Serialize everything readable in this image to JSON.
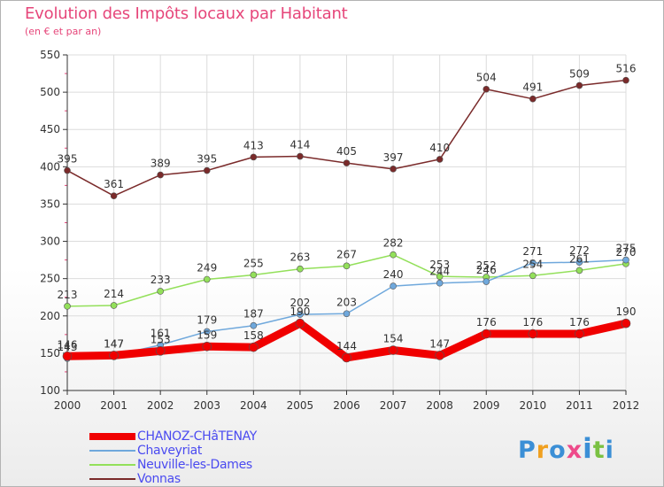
{
  "title": "Evolution des Impôts locaux par Habitant",
  "subtitle": "(en € et par an)",
  "logo": {
    "text": "Proxiti",
    "colors": [
      "#3b8fd6",
      "#f0a020",
      "#3b8fd6",
      "#ee4a8a",
      "#3b8fd6",
      "#7ac142",
      "#3b8fd6"
    ]
  },
  "chart_data": {
    "type": "line",
    "x": [
      "2000",
      "2001",
      "2002",
      "2003",
      "2004",
      "2005",
      "2006",
      "2007",
      "2008",
      "2009",
      "2010",
      "2011",
      "2012"
    ],
    "ylim": [
      100,
      550
    ],
    "yticks": [
      100,
      150,
      200,
      250,
      300,
      350,
      400,
      450,
      500,
      550
    ],
    "grid": true,
    "legend_position": "bottom-left",
    "series": [
      {
        "name": "CHANOZ-CHâTENAY",
        "color": "#f00000",
        "values": [
          146,
          147,
          153,
          159,
          158,
          190,
          144,
          154,
          147,
          176,
          176,
          176,
          190
        ]
      },
      {
        "name": "Chaveyriat",
        "color": "#6fa8dc",
        "values": [
          143,
          147,
          161,
          179,
          187,
          202,
          203,
          240,
          244,
          246,
          271,
          272,
          275
        ]
      },
      {
        "name": "Neuville-les-Dames",
        "color": "#93e05a",
        "values": [
          213,
          214,
          233,
          249,
          255,
          263,
          267,
          282,
          253,
          252,
          254,
          261,
          270
        ]
      },
      {
        "name": "Vonnas",
        "color": "#7a2a2a",
        "values": [
          395,
          361,
          389,
          395,
          413,
          414,
          405,
          397,
          410,
          504,
          491,
          509,
          516
        ]
      }
    ]
  }
}
